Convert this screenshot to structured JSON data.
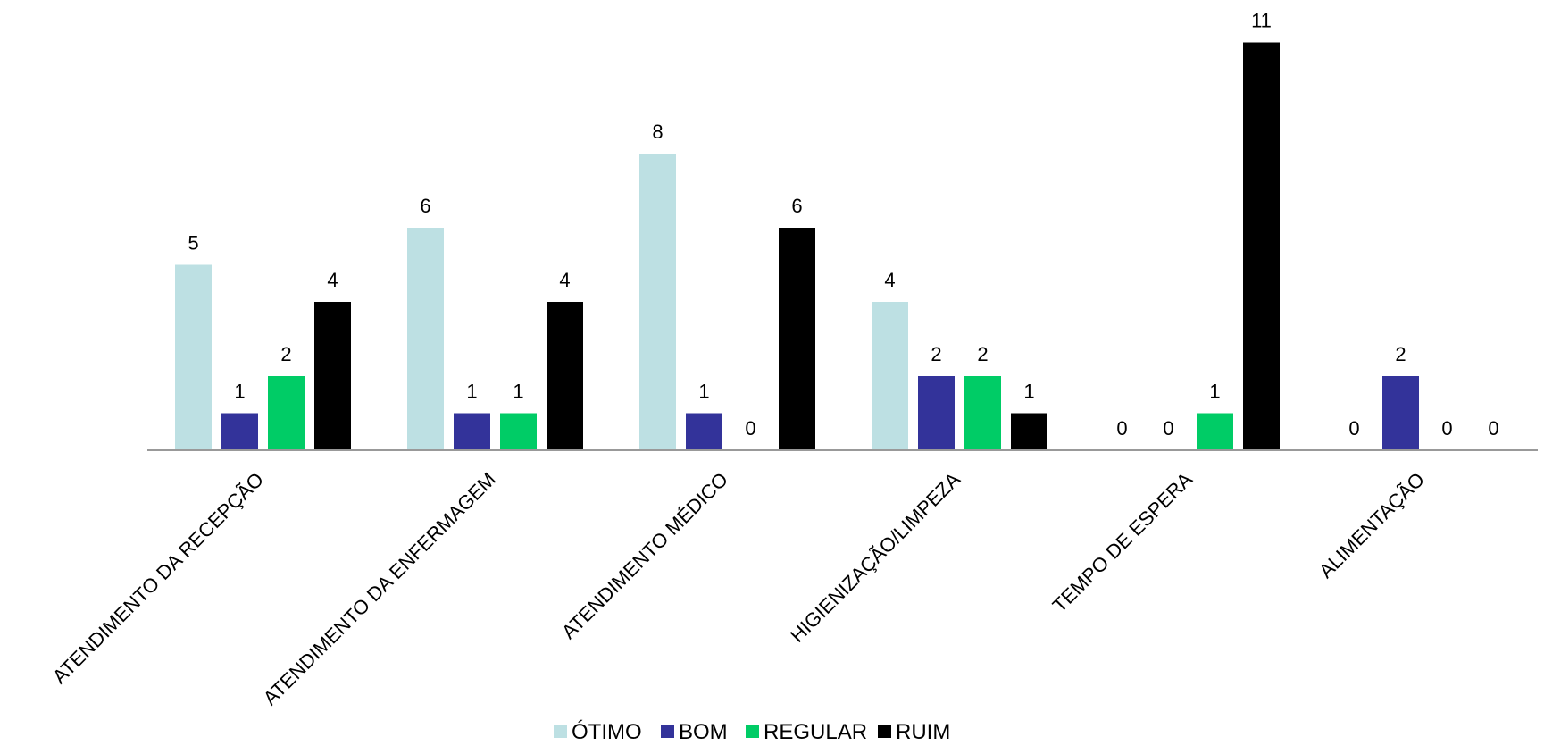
{
  "chart_data": {
    "type": "bar",
    "categories": [
      "ATENDIMENTO DA RECEPÇÃO",
      "ATENDIMENTO DA ENFERMAGEM",
      "ATENDIMENTO MÉDICO",
      "HIGIENIZAÇÃO/LIMPEZA",
      "TEMPO DE ESPERA",
      "ALIMENTAÇÃO"
    ],
    "series": [
      {
        "name": "ÓTIMO",
        "color": "#bde0e3",
        "values": [
          5,
          6,
          8,
          4,
          0,
          0
        ]
      },
      {
        "name": "BOM",
        "color": "#33339a",
        "values": [
          1,
          1,
          1,
          2,
          0,
          2
        ]
      },
      {
        "name": "REGULAR",
        "color": "#00cc66",
        "values": [
          2,
          1,
          0,
          2,
          1,
          0
        ]
      },
      {
        "name": "RUIM",
        "color": "#000000",
        "values": [
          4,
          4,
          6,
          1,
          11,
          0
        ]
      }
    ],
    "ylim": [
      0,
      11
    ],
    "grid": false,
    "data_labels": true,
    "legend_position": "bottom",
    "axis_color": "#999999"
  }
}
